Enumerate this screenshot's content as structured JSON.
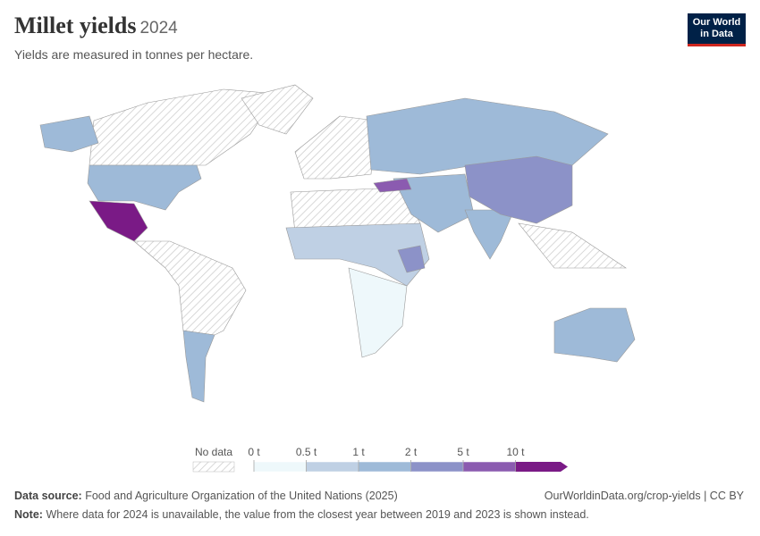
{
  "header": {
    "title": "Millet yields",
    "year": "2024",
    "subtitle": "Yields are measured in tonnes per hectare.",
    "logo": [
      "Our World",
      "in Data"
    ]
  },
  "legend": {
    "no_data": "No data",
    "ticks": [
      "0 t",
      "0.5 t",
      "1 t",
      "2 t",
      "5 t",
      "10 t"
    ],
    "colors": [
      "#eef8fb",
      "#bfd0e4",
      "#9ebad8",
      "#8c92c8",
      "#8b5bb0",
      "#7a1a86"
    ]
  },
  "footer": {
    "source_label": "Data source:",
    "source": "Food and Agriculture Organization of the United Nations (2025)",
    "url": "OurWorldinData.org/crop-yields | CC BY",
    "note_label": "Note:",
    "note": "Where data for 2024 is unavailable, the value from the closest year between 2019 and 2023 is shown instead."
  }
}
